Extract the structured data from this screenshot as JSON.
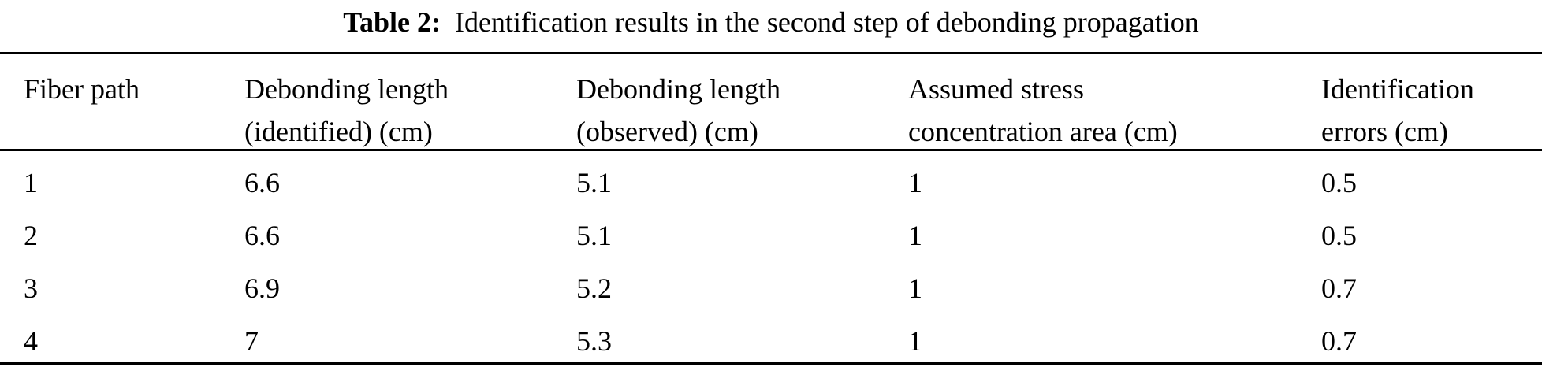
{
  "caption": {
    "label": "Table 2:",
    "text": "Identification results in the second step of debonding propagation"
  },
  "table": {
    "headers": [
      [
        "Fiber path",
        ""
      ],
      [
        "Debonding length",
        "(identified) (cm)"
      ],
      [
        "Debonding length",
        "(observed) (cm)"
      ],
      [
        "Assumed stress",
        "concentration area (cm)"
      ],
      [
        "Identification",
        "errors (cm)"
      ]
    ],
    "rows": [
      [
        "1",
        "6.6",
        "5.1",
        "1",
        "0.5"
      ],
      [
        "2",
        "6.6",
        "5.1",
        "1",
        "0.5"
      ],
      [
        "3",
        "6.9",
        "5.2",
        "1",
        "0.7"
      ],
      [
        "4",
        "7",
        "5.3",
        "1",
        "0.7"
      ]
    ]
  }
}
